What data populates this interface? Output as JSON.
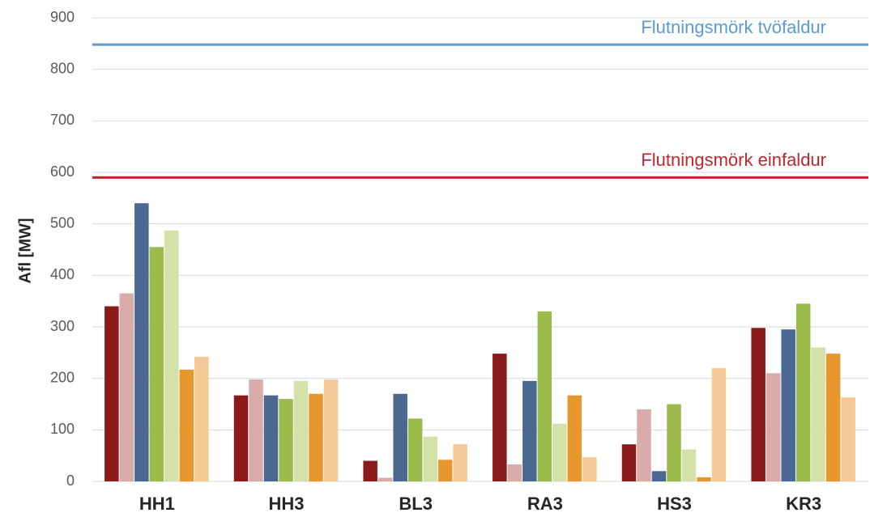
{
  "chart_data": {
    "type": "bar",
    "ylabel": "Afl [MW]",
    "categories": [
      "HH1",
      "HH3",
      "BL3",
      "RA3",
      "HS3",
      "KR3"
    ],
    "series": [
      {
        "color": "#8b1a1a",
        "values": [
          340,
          167,
          40,
          248,
          72,
          298
        ]
      },
      {
        "color": "#d9abab",
        "values": [
          365,
          198,
          7,
          33,
          140,
          210
        ]
      },
      {
        "color": "#4a6890",
        "values": [
          540,
          167,
          170,
          195,
          20,
          295
        ]
      },
      {
        "color": "#9bbb4a",
        "values": [
          455,
          160,
          122,
          330,
          150,
          345
        ]
      },
      {
        "color": "#d4e1a8",
        "values": [
          487,
          195,
          87,
          112,
          62,
          260
        ]
      },
      {
        "color": "#e8962e",
        "values": [
          217,
          170,
          42,
          167,
          8,
          248
        ]
      },
      {
        "color": "#f4c995",
        "values": [
          242,
          198,
          72,
          47,
          220,
          163
        ]
      }
    ],
    "reference_lines": [
      {
        "value": 848,
        "label": "Flutningsmörk tvöfaldur",
        "color": "#5b9bd5"
      },
      {
        "value": 590,
        "label": "Flutningsmörk einfaldur",
        "color": "#c0262f"
      }
    ],
    "ylim": [
      0,
      900
    ],
    "yticks": [
      0,
      100,
      200,
      300,
      400,
      500,
      600,
      700,
      800,
      900
    ],
    "grid": true
  }
}
